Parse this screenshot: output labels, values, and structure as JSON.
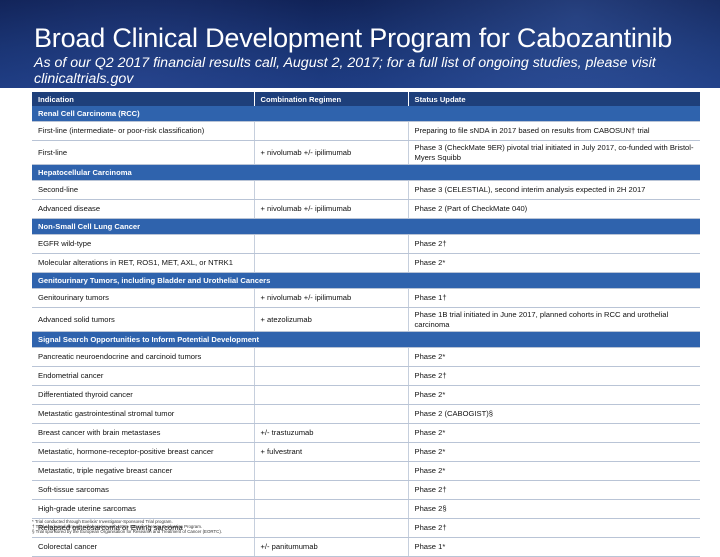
{
  "header": {
    "title": "Broad Clinical Development Program for Cabozantinib",
    "subtitle": "As of our Q2 2017 financial results call, August 2, 2017; for a full list of ongoing studies, please visit clinicaltrials.gov"
  },
  "table": {
    "columns": [
      "Indication",
      "Combination Regimen",
      "Status Update"
    ],
    "sections": [
      {
        "title": "Renal Cell Carcinoma (RCC)",
        "rows": [
          [
            "First-line (intermediate- or poor-risk classification)",
            "",
            "Preparing to file sNDA in 2017 based on results from CABOSUN† trial"
          ],
          [
            "First-line",
            "+ nivolumab +/- ipilimumab",
            "Phase 3 (CheckMate 9ER) pivotal trial initiated in July 2017, co-funded with Bristol-Myers Squibb"
          ]
        ]
      },
      {
        "title": "Hepatocellular Carcinoma",
        "rows": [
          [
            "Second-line",
            "",
            "Phase 3 (CELESTIAL), second interim analysis expected in 2H 2017"
          ],
          [
            "Advanced disease",
            "+ nivolumab +/- ipilimumab",
            "Phase 2 (Part of CheckMate 040)"
          ]
        ]
      },
      {
        "title": "Non-Small Cell Lung Cancer",
        "rows": [
          [
            "EGFR wild-type",
            "",
            "Phase 2†"
          ],
          [
            "Molecular alterations in RET, ROS1, MET, AXL, or NTRK1",
            "",
            "Phase 2*"
          ]
        ]
      },
      {
        "title": "Genitourinary Tumors, including Bladder and Urothelial Cancers",
        "rows": [
          [
            "Genitourinary tumors",
            "+ nivolumab +/- ipilimumab",
            "Phase 1†"
          ],
          [
            "Advanced solid tumors",
            "+ atezolizumab",
            "Phase 1B trial initiated in June 2017, planned cohorts in RCC and urothelial carcinoma"
          ]
        ]
      },
      {
        "title": "Signal Search Opportunities to Inform Potential Development",
        "rows": [
          [
            "Pancreatic neuroendocrine and carcinoid tumors",
            "",
            "Phase 2*"
          ],
          [
            "Endometrial cancer",
            "",
            "Phase 2†"
          ],
          [
            "Differentiated thyroid cancer",
            "",
            "Phase 2*"
          ],
          [
            "Metastatic gastrointestinal stromal tumor",
            "",
            "Phase 2 (CABOGIST)§"
          ],
          [
            "Breast cancer with brain metastases",
            "+/- trastuzumab",
            "Phase 2*"
          ],
          [
            "Metastatic, hormone-receptor-positive breast cancer",
            "+ fulvestrant",
            "Phase 2*"
          ],
          [
            "Metastatic, triple negative breast cancer",
            "",
            "Phase 2*"
          ],
          [
            "Soft-tissue sarcomas",
            "",
            "Phase 2†"
          ],
          [
            "High-grade uterine sarcomas",
            "",
            "Phase 2§"
          ],
          [
            "Relapsed osteosarcoma or Ewing sarcoma",
            "",
            "Phase 2†"
          ],
          [
            "Colorectal cancer",
            "+/- panitumumab",
            "Phase 1*"
          ]
        ]
      }
    ]
  },
  "footnotes": [
    "* Trial conducted through Exelixis' Investigator-Sponsored Trial program.",
    "† Trial conducted through collaboration with NCI's Cancer Therapy Evaluation Program.",
    "§ Trial sponsored by the European Organisation for Research and Treatment of Cancer (EORTC)."
  ]
}
